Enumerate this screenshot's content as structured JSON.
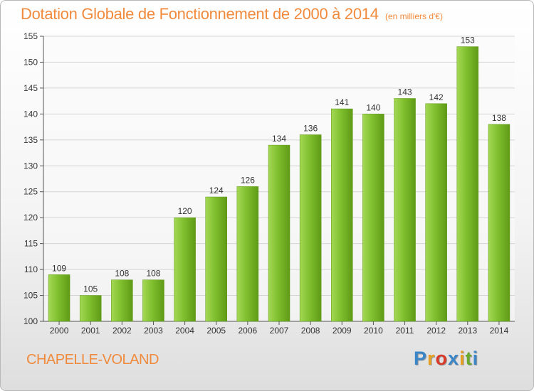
{
  "header": {
    "title": "Dotation Globale de Fonctionnement de 2000 à 2014",
    "subtitle": "(en milliers d'€)"
  },
  "footer": {
    "commune": "CHAPELLE-VOLAND",
    "logo_letters": [
      "P",
      "r",
      "o",
      "x",
      "i",
      "t",
      "i"
    ],
    "logo_colors": [
      "#3a86c8",
      "#e8a020",
      "#d83a2a",
      "#3a86c8",
      "#e8a020",
      "#6aaa2a",
      "#3a86c8"
    ]
  },
  "chart_data": {
    "type": "bar",
    "categories": [
      "2000",
      "2001",
      "2002",
      "2003",
      "2004",
      "2005",
      "2006",
      "2007",
      "2008",
      "2009",
      "2010",
      "2011",
      "2012",
      "2013",
      "2014"
    ],
    "values": [
      109,
      105,
      108,
      108,
      120,
      124,
      126,
      134,
      136,
      141,
      140,
      143,
      142,
      153,
      138
    ],
    "title": "Dotation Globale de Fonctionnement de 2000 à 2014",
    "xlabel": "",
    "ylabel": "",
    "ylim": [
      100,
      155
    ],
    "yticks": [
      100,
      105,
      110,
      115,
      120,
      125,
      130,
      135,
      140,
      145,
      150,
      155
    ],
    "grid": true,
    "bar_color": "#7fbf2e",
    "bar_color_dark": "#5f9a16",
    "bar_color_light": "#a4d855",
    "grid_color": "#d4d4d4",
    "text_color": "#333333"
  }
}
